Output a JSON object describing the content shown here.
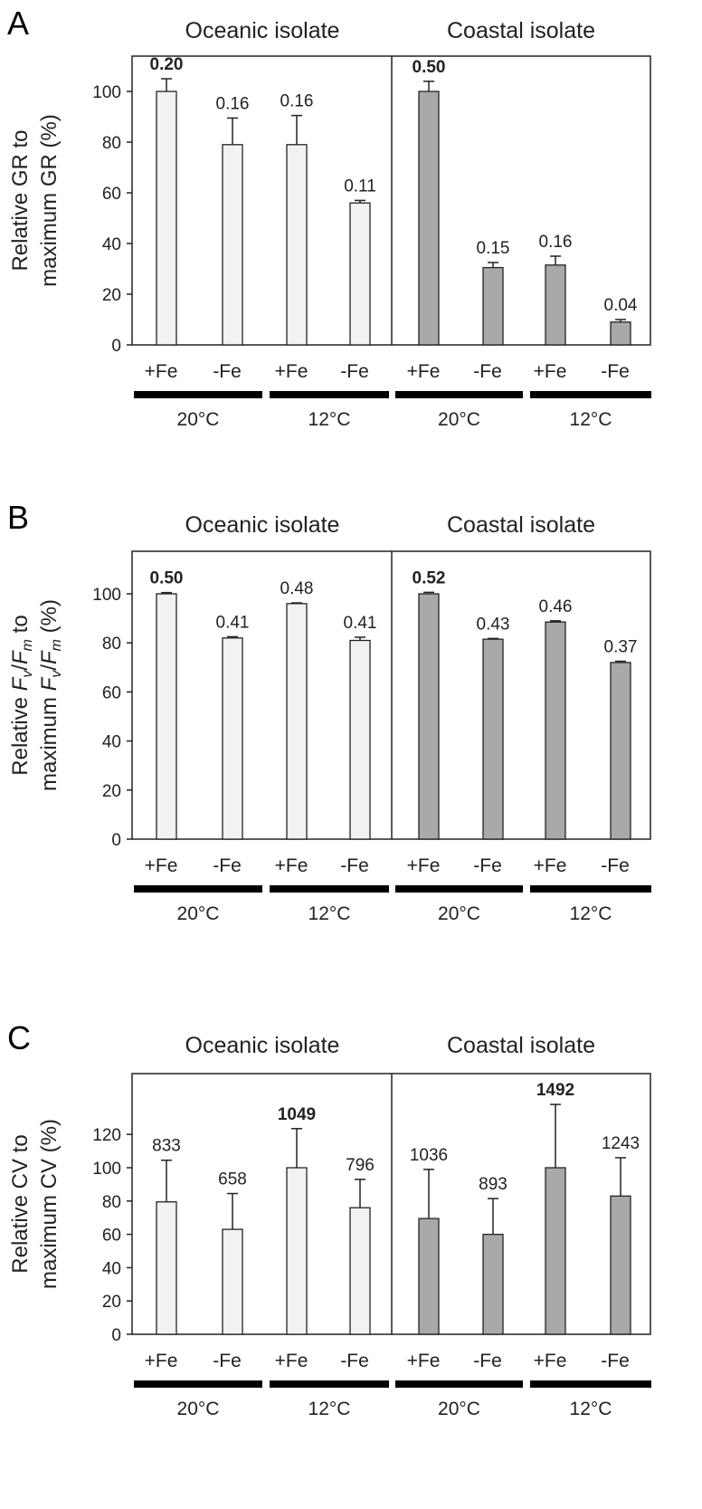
{
  "chart_data": [
    {
      "type": "bar",
      "panel": "A",
      "groups": [
        "Oceanic isolate",
        "Coastal isolate"
      ],
      "categories": [
        "+Fe",
        "-Fe",
        "+Fe",
        "-Fe",
        "+Fe",
        "-Fe",
        "+Fe",
        "-Fe"
      ],
      "temperatures": [
        "20°C",
        "12°C",
        "20°C",
        "12°C"
      ],
      "ylabel_lines": [
        [
          {
            "t": "Relative GR to"
          }
        ],
        [
          {
            "t": "maximum GR (%)"
          }
        ]
      ],
      "ylabel": "Relative GR to maximum GR (%)",
      "ylim": [
        0,
        100
      ],
      "yticks": [
        "0",
        "20",
        "40",
        "60",
        "80",
        "100"
      ],
      "values": [
        100,
        79,
        79,
        56,
        100,
        30.5,
        31.5,
        9
      ],
      "error_upper": [
        105,
        89.5,
        90.5,
        57,
        104,
        32.5,
        35,
        10
      ],
      "data_labels": [
        "0.20",
        "0.16",
        "0.16",
        "0.11",
        "0.50",
        "0.15",
        "0.16",
        "0.04"
      ],
      "bold_labels": [
        true,
        false,
        false,
        false,
        true,
        false,
        false,
        false
      ],
      "colors": {
        "oceanic": "#f2f2f2",
        "coastal": "#a9a9a9"
      }
    },
    {
      "type": "bar",
      "panel": "B",
      "groups": [
        "Oceanic isolate",
        "Coastal isolate"
      ],
      "categories": [
        "+Fe",
        "-Fe",
        "+Fe",
        "-Fe",
        "+Fe",
        "-Fe",
        "+Fe",
        "-Fe"
      ],
      "temperatures": [
        "20°C",
        "12°C",
        "20°C",
        "12°C"
      ],
      "ylabel_lines": [
        [
          {
            "t": "Relative "
          },
          {
            "t": "F",
            "i": 1
          },
          {
            "t": "v",
            "i": 1,
            "s": 1
          },
          {
            "t": "/"
          },
          {
            "t": "F",
            "i": 1
          },
          {
            "t": "m",
            "i": 1,
            "s": 1
          },
          {
            "t": " to"
          }
        ],
        [
          {
            "t": "maximum "
          },
          {
            "t": "F",
            "i": 1
          },
          {
            "t": "v",
            "i": 1,
            "s": 1
          },
          {
            "t": "/"
          },
          {
            "t": "F",
            "i": 1
          },
          {
            "t": "m",
            "i": 1,
            "s": 1
          },
          {
            "t": " (%)"
          }
        ]
      ],
      "ylabel": "Relative Fv/Fm to maximum Fv/Fm (%)",
      "ylim": [
        0,
        100
      ],
      "yticks": [
        "0",
        "20",
        "40",
        "60",
        "80",
        "100"
      ],
      "values": [
        100,
        82,
        96,
        81,
        100,
        81.5,
        88.5,
        72
      ],
      "error_upper": [
        100.5,
        82.5,
        96.3,
        82.3,
        100.6,
        81.8,
        89,
        72.5
      ],
      "data_labels": [
        "0.50",
        "0.41",
        "0.48",
        "0.41",
        "0.52",
        "0.43",
        "0.46",
        "0.37"
      ],
      "bold_labels": [
        true,
        false,
        false,
        false,
        true,
        false,
        false,
        false
      ],
      "colors": {
        "oceanic": "#f2f2f2",
        "coastal": "#a9a9a9"
      }
    },
    {
      "type": "bar",
      "panel": "C",
      "groups": [
        "Oceanic isolate",
        "Coastal isolate"
      ],
      "categories": [
        "+Fe",
        "-Fe",
        "+Fe",
        "-Fe",
        "+Fe",
        "-Fe",
        "+Fe",
        "-Fe"
      ],
      "temperatures": [
        "20°C",
        "12°C",
        "20°C",
        "12°C"
      ],
      "ylabel_lines": [
        [
          {
            "t": "Relative CV to"
          }
        ],
        [
          {
            "t": "maximum CV (%)"
          }
        ]
      ],
      "ylabel": "Relative CV to maximum CV (%)",
      "ylim": [
        0,
        120
      ],
      "yticks": [
        "0",
        "20",
        "40",
        "60",
        "80",
        "100",
        "120"
      ],
      "values": [
        79.5,
        63,
        100,
        76,
        69.5,
        60,
        100,
        83
      ],
      "error_upper": [
        104.5,
        84.5,
        123.5,
        93,
        99,
        81.5,
        138,
        106
      ],
      "data_labels": [
        "833",
        "658",
        "1049",
        "796",
        "1036",
        "893",
        "1492",
        "1243"
      ],
      "bold_labels": [
        false,
        false,
        true,
        false,
        false,
        false,
        true,
        false
      ],
      "colors": {
        "oceanic": "#f2f2f2",
        "coastal": "#a9a9a9"
      }
    }
  ]
}
